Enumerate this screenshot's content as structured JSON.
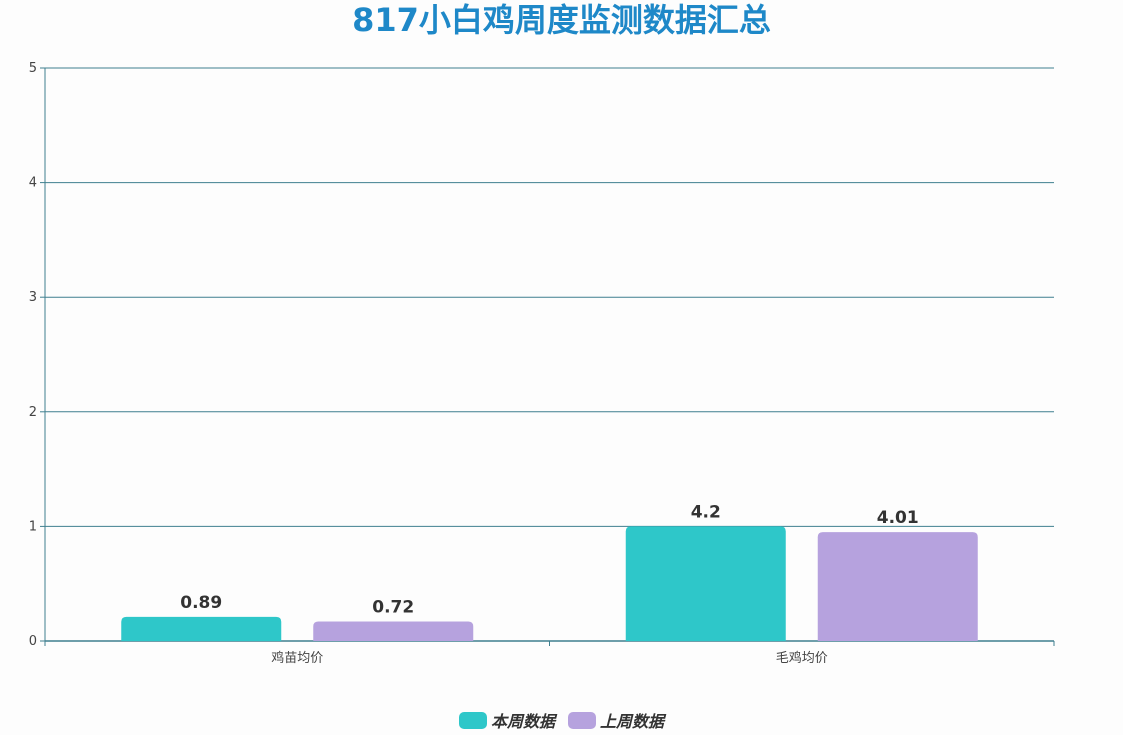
{
  "chart_data": {
    "type": "bar",
    "title": "817小白鸡周度监测数据汇总",
    "categories": [
      "鸡苗均价",
      "毛鸡均价"
    ],
    "series": [
      {
        "name": "本周数据",
        "color": "#2ec7c9",
        "bar_heights": [
          0.21,
          1.0
        ],
        "labels": [
          "0.89",
          "4.2"
        ]
      },
      {
        "name": "上周数据",
        "color": "#b6a2de",
        "bar_heights": [
          0.17,
          0.95
        ],
        "labels": [
          "0.72",
          "4.01"
        ]
      }
    ],
    "y_ticks": [
      "0",
      "1",
      "2",
      "3",
      "4",
      "5"
    ],
    "ylim": [
      0,
      5
    ],
    "xlabel": "",
    "ylabel": "",
    "grid": true,
    "legend_position": "bottom-center",
    "axis_color": "#3f7f8f"
  }
}
